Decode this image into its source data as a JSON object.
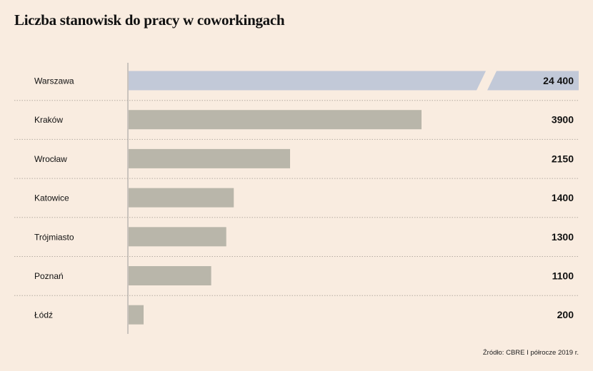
{
  "chart_data": {
    "type": "bar",
    "orientation": "horizontal",
    "title": "Liczba stanowisk do pracy w coworkingach",
    "categories": [
      "Warszawa",
      "Kraków",
      "Wrocław",
      "Katowice",
      "Trójmiasto",
      "Poznań",
      "Łódź"
    ],
    "values": [
      24400,
      3900,
      2150,
      1400,
      1300,
      1100,
      200
    ],
    "value_labels": [
      "24 400",
      "3900",
      "2150",
      "1400",
      "1300",
      "1100",
      "200"
    ],
    "axis_break": true,
    "colors": {
      "highlight": "#c2c9d8",
      "default": "#b9b6aa",
      "background": "#f9ece0"
    },
    "grid": "dotted horizontal separators"
  },
  "source": "Źródło: CBRE I półrocze 2019 r."
}
